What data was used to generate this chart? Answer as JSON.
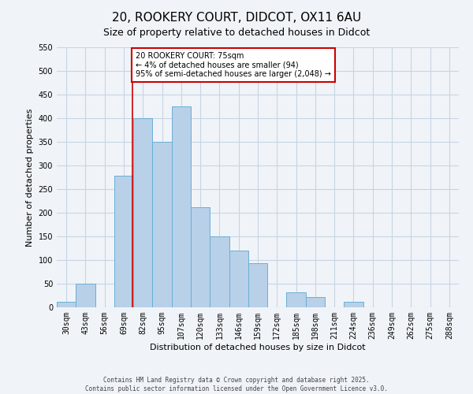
{
  "title": "20, ROOKERY COURT, DIDCOT, OX11 6AU",
  "subtitle": "Size of property relative to detached houses in Didcot",
  "xlabel": "Distribution of detached houses by size in Didcot",
  "ylabel": "Number of detached properties",
  "bar_labels": [
    "30sqm",
    "43sqm",
    "56sqm",
    "69sqm",
    "82sqm",
    "95sqm",
    "107sqm",
    "120sqm",
    "133sqm",
    "146sqm",
    "159sqm",
    "172sqm",
    "185sqm",
    "198sqm",
    "211sqm",
    "224sqm",
    "236sqm",
    "249sqm",
    "262sqm",
    "275sqm",
    "288sqm"
  ],
  "bar_values": [
    12,
    50,
    0,
    278,
    400,
    350,
    425,
    212,
    150,
    120,
    93,
    0,
    31,
    21,
    0,
    11,
    0,
    0,
    0,
    0,
    0
  ],
  "bar_color": "#b8d0e8",
  "bar_edge_color": "#6aaed6",
  "annotation_title": "20 ROOKERY COURT: 75sqm",
  "annotation_line1": "← 4% of detached houses are smaller (94)",
  "annotation_line2": "95% of semi-detached houses are larger (2,048) →",
  "annotation_box_color": "#ffffff",
  "annotation_border_color": "#cc0000",
  "ylim": [
    0,
    550
  ],
  "yticks": [
    0,
    50,
    100,
    150,
    200,
    250,
    300,
    350,
    400,
    450,
    500,
    550
  ],
  "footer1": "Contains HM Land Registry data © Crown copyright and database right 2025.",
  "footer2": "Contains public sector information licensed under the Open Government Licence v3.0.",
  "bg_color": "#f0f4f8",
  "grid_color": "#c8d4e4",
  "title_fontsize": 11,
  "subtitle_fontsize": 9,
  "axis_label_fontsize": 8,
  "tick_fontsize": 7,
  "footer_fontsize": 5.5
}
